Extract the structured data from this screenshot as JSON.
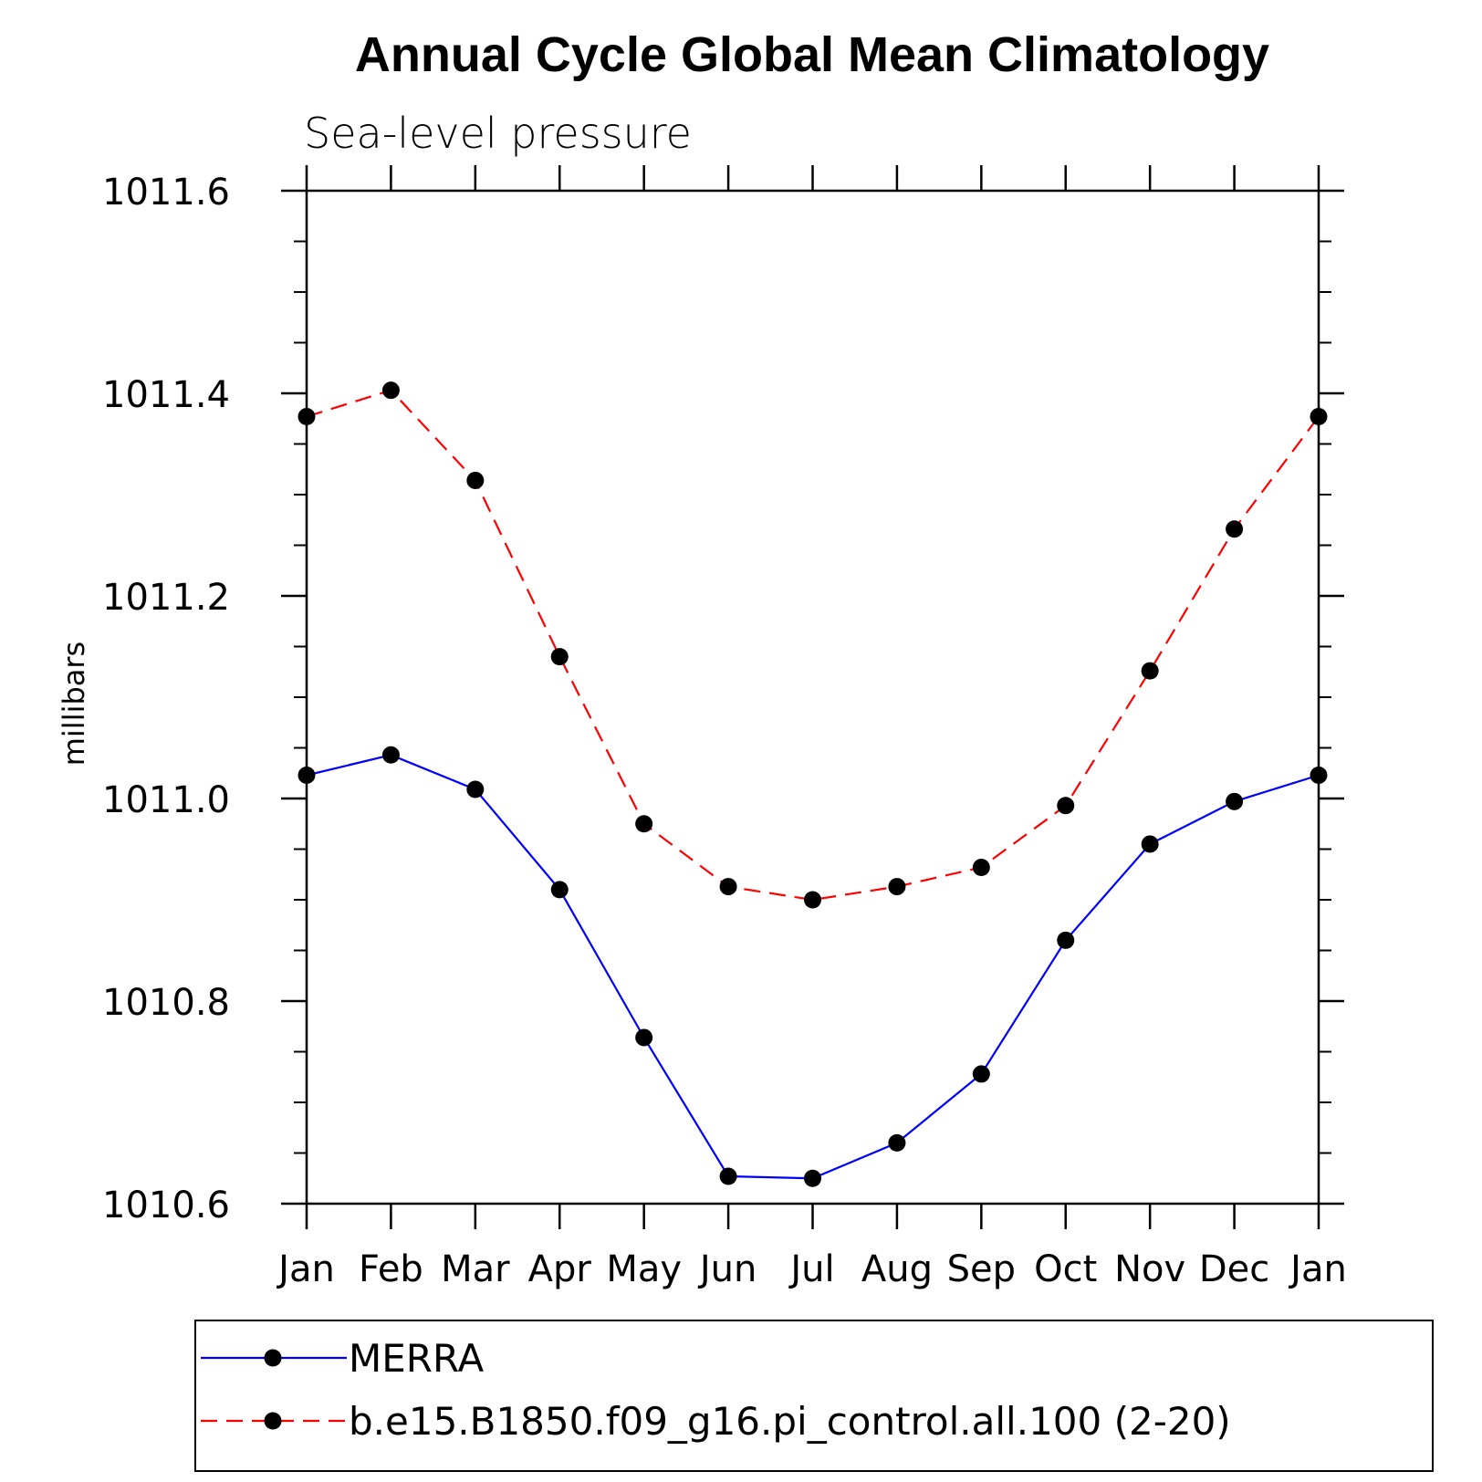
{
  "chart_data": {
    "type": "line",
    "title": "Annual Cycle Global Mean Climatology",
    "subtitle": "Sea-level pressure",
    "ylabel": "millibars",
    "xlabel": "",
    "categories": [
      "Jan",
      "Feb",
      "Mar",
      "Apr",
      "May",
      "Jun",
      "Jul",
      "Aug",
      "Sep",
      "Oct",
      "Nov",
      "Dec",
      "Jan"
    ],
    "ylim": [
      1010.6,
      1011.6
    ],
    "yticks": [
      "1010.6",
      "1010.8",
      "1011.0",
      "1011.2",
      "1011.4",
      "1011.6"
    ],
    "yticks_values": [
      1010.6,
      1010.8,
      1011.0,
      1011.2,
      1011.4,
      1011.6
    ],
    "yminor_step": 0.05,
    "legend_position": "bottom",
    "series": [
      {
        "name": "MERRA",
        "color": "#0000ff",
        "dash": "solid",
        "values": [
          1011.023,
          1011.043,
          1011.009,
          1010.91,
          1010.764,
          1010.627,
          1010.625,
          1010.66,
          1010.728,
          1010.86,
          1010.955,
          1010.997,
          1011.023
        ]
      },
      {
        "name": "b.e15.B1850.f09_g16.pi_control.all.100 (2-20)",
        "color": "#ff0000",
        "dash": "dashed",
        "values": [
          1011.377,
          1011.403,
          1011.314,
          1011.14,
          1010.975,
          1010.913,
          1010.9,
          1010.913,
          1010.932,
          1010.993,
          1011.126,
          1011.266,
          1011.377
        ]
      }
    ]
  }
}
